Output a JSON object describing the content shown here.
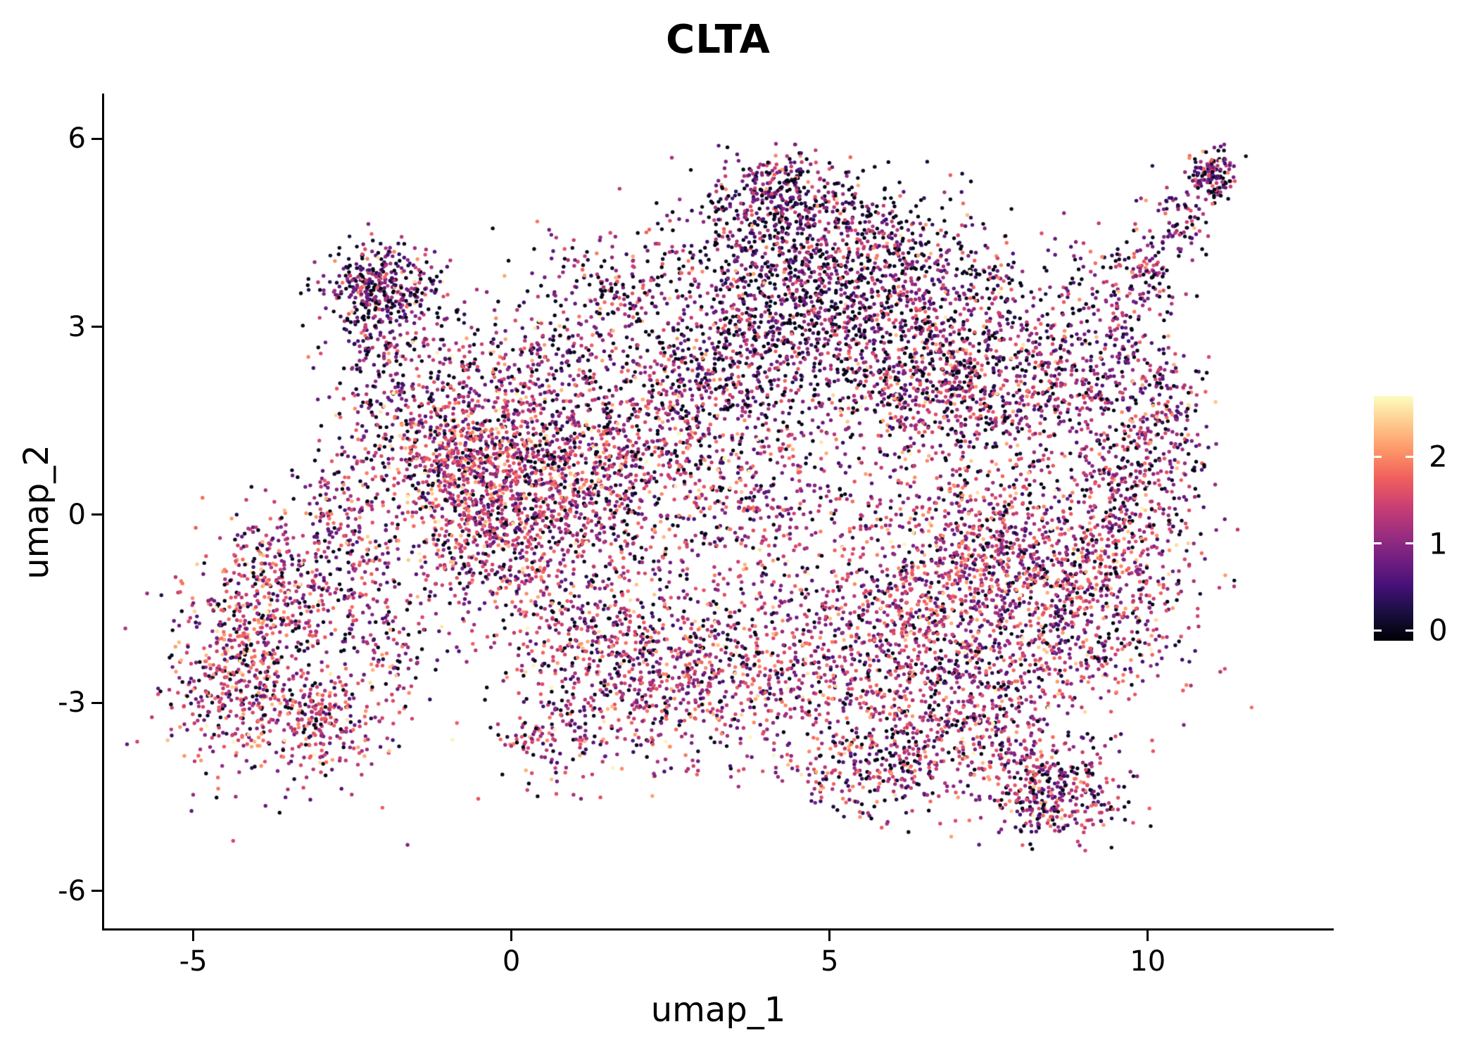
{
  "title": "CLTA",
  "axes": {
    "x": {
      "label": "umap_1",
      "ticks": [
        -5,
        0,
        5,
        10
      ],
      "range": [
        -6.4,
        12.9
      ]
    },
    "y": {
      "label": "umap_2",
      "ticks": [
        -6,
        -3,
        0,
        3,
        6
      ],
      "range": [
        -6.6,
        6.7
      ]
    }
  },
  "colorbar": {
    "ticks": [
      0,
      1,
      2
    ],
    "position": "right"
  },
  "chart_data": {
    "type": "scatter",
    "title": "CLTA",
    "xlabel": "umap_1",
    "ylabel": "umap_2",
    "xlim": [
      -6.4,
      12.9
    ],
    "ylim": [
      -6.6,
      6.7
    ],
    "grid": false,
    "legend": "vertical colorbar at right, expression values 0 to ~2.7, magma colormap (black to light yellow)",
    "point_radius_px": 2.7,
    "seed": 42,
    "value_sigma": 0.6,
    "color_scale": {
      "name": "magma",
      "domain": [
        -0.12,
        2.7
      ],
      "stops": [
        "#000004",
        "#180F3E",
        "#451077",
        "#721F81",
        "#9F2F7F",
        "#CD4071",
        "#F1605D",
        "#FD9668",
        "#FECA8D",
        "#FCFDBF"
      ]
    },
    "clusters": [
      {
        "x": -4.3,
        "y": -2.6,
        "sx": 0.55,
        "sy": 0.8,
        "n": 500,
        "mu": 1.35,
        "z": 0.15
      },
      {
        "x": -3.6,
        "y": -1.2,
        "sx": 0.5,
        "sy": 0.7,
        "n": 350,
        "mu": 1.3,
        "z": 0.15
      },
      {
        "x": -3.0,
        "y": -3.3,
        "sx": 0.5,
        "sy": 0.5,
        "n": 260,
        "mu": 1.4,
        "z": 0.12
      },
      {
        "x": -2.6,
        "y": -0.2,
        "sx": 0.35,
        "sy": 0.7,
        "n": 200,
        "mu": 1.2,
        "z": 0.18
      },
      {
        "x": -2.05,
        "y": 3.6,
        "sx": 0.45,
        "sy": 0.33,
        "n": 380,
        "mu": 0.95,
        "z": 0.2
      },
      {
        "x": -1.8,
        "y": 2.6,
        "sx": 0.6,
        "sy": 0.5,
        "n": 160,
        "mu": 1.0,
        "z": 0.25
      },
      {
        "x": -1.7,
        "y": 1.4,
        "sx": 0.5,
        "sy": 0.6,
        "n": 200,
        "mu": 1.1,
        "z": 0.2
      },
      {
        "x": -0.7,
        "y": 0.7,
        "sx": 0.55,
        "sy": 0.8,
        "n": 620,
        "mu": 1.35,
        "z": 0.12
      },
      {
        "x": 0.3,
        "y": 0.9,
        "sx": 0.8,
        "sy": 0.7,
        "n": 600,
        "mu": 1.3,
        "z": 0.13
      },
      {
        "x": 0.0,
        "y": -0.6,
        "sx": 0.8,
        "sy": 0.6,
        "n": 360,
        "mu": 1.25,
        "z": 0.15
      },
      {
        "x": 1.4,
        "y": 0.3,
        "sx": 0.7,
        "sy": 0.8,
        "n": 420,
        "mu": 1.2,
        "z": 0.15
      },
      {
        "x": 1.5,
        "y": -2.2,
        "sx": 0.9,
        "sy": 0.7,
        "n": 480,
        "mu": 1.25,
        "z": 0.15
      },
      {
        "x": 2.8,
        "y": -2.7,
        "sx": 0.8,
        "sy": 0.7,
        "n": 430,
        "mu": 1.25,
        "z": 0.15
      },
      {
        "x": 4.3,
        "y": 4.7,
        "sx": 0.8,
        "sy": 0.45,
        "n": 420,
        "mu": 0.95,
        "z": 0.28
      },
      {
        "x": 4.5,
        "y": 3.3,
        "sx": 1.0,
        "sy": 0.6,
        "n": 700,
        "mu": 0.9,
        "z": 0.3
      },
      {
        "x": 3.3,
        "y": 2.2,
        "sx": 0.8,
        "sy": 0.5,
        "n": 340,
        "mu": 1.05,
        "z": 0.22
      },
      {
        "x": 4.2,
        "y": 5.3,
        "sx": 0.35,
        "sy": 0.25,
        "n": 140,
        "mu": 1.0,
        "z": 0.25
      },
      {
        "x": 6.3,
        "y": 2.2,
        "sx": 1.0,
        "sy": 0.7,
        "n": 680,
        "mu": 1.1,
        "z": 0.2
      },
      {
        "x": 7.9,
        "y": 2.1,
        "sx": 0.9,
        "sy": 0.7,
        "n": 480,
        "mu": 1.1,
        "z": 0.2
      },
      {
        "x": 9.3,
        "y": 2.9,
        "sx": 0.6,
        "sy": 0.8,
        "n": 240,
        "mu": 1.05,
        "z": 0.22
      },
      {
        "x": 9.9,
        "y": 3.9,
        "sx": 0.25,
        "sy": 0.3,
        "n": 80,
        "mu": 1.0,
        "z": 0.2
      },
      {
        "x": 10.5,
        "y": 4.7,
        "sx": 0.2,
        "sy": 0.3,
        "n": 80,
        "mu": 1.0,
        "z": 0.2
      },
      {
        "x": 11.0,
        "y": 5.4,
        "sx": 0.18,
        "sy": 0.22,
        "n": 130,
        "mu": 1.0,
        "z": 0.25
      },
      {
        "x": 3.8,
        "y": 0.1,
        "sx": 0.9,
        "sy": 0.8,
        "n": 380,
        "mu": 1.2,
        "z": 0.15
      },
      {
        "x": 4.6,
        "y": -2.4,
        "sx": 0.8,
        "sy": 0.7,
        "n": 360,
        "mu": 1.25,
        "z": 0.15
      },
      {
        "x": 7.5,
        "y": -0.5,
        "sx": 1.2,
        "sy": 0.8,
        "n": 820,
        "mu": 1.3,
        "z": 0.12
      },
      {
        "x": 6.5,
        "y": -1.9,
        "sx": 0.9,
        "sy": 0.8,
        "n": 600,
        "mu": 1.3,
        "z": 0.12
      },
      {
        "x": 8.8,
        "y": -1.6,
        "sx": 0.9,
        "sy": 0.8,
        "n": 600,
        "mu": 1.25,
        "z": 0.14
      },
      {
        "x": 9.7,
        "y": 0.3,
        "sx": 0.55,
        "sy": 0.9,
        "n": 340,
        "mu": 1.15,
        "z": 0.18
      },
      {
        "x": 10.2,
        "y": 1.6,
        "sx": 0.4,
        "sy": 0.7,
        "n": 200,
        "mu": 1.1,
        "z": 0.2
      },
      {
        "x": 7.2,
        "y": -3.5,
        "sx": 1.0,
        "sy": 0.6,
        "n": 540,
        "mu": 1.25,
        "z": 0.15
      },
      {
        "x": 8.6,
        "y": -4.5,
        "sx": 0.5,
        "sy": 0.35,
        "n": 300,
        "mu": 1.15,
        "z": 0.18
      },
      {
        "x": 5.6,
        "y": -4.1,
        "sx": 0.6,
        "sy": 0.4,
        "n": 200,
        "mu": 1.2,
        "z": 0.16
      },
      {
        "x": 1.8,
        "y": 3.4,
        "sx": 1.0,
        "sy": 0.6,
        "n": 280,
        "mu": 1.1,
        "z": 0.22
      },
      {
        "x": 0.4,
        "y": 2.5,
        "sx": 0.7,
        "sy": 0.4,
        "n": 150,
        "mu": 1.15,
        "z": 0.2
      },
      {
        "x": 2.5,
        "y": 1.2,
        "sx": 0.8,
        "sy": 0.6,
        "n": 300,
        "mu": 1.2,
        "z": 0.15
      },
      {
        "x": -1.9,
        "y": -1.8,
        "sx": 0.4,
        "sy": 0.9,
        "n": 150,
        "mu": 1.2,
        "z": 0.2
      },
      {
        "x": 0.6,
        "y": -3.6,
        "sx": 0.5,
        "sy": 0.4,
        "n": 120,
        "mu": 1.2,
        "z": 0.18
      },
      {
        "x": 5.8,
        "y": 4.3,
        "sx": 0.7,
        "sy": 0.5,
        "n": 250,
        "mu": 1.0,
        "z": 0.25
      },
      {
        "x": 6.8,
        "y": 3.6,
        "sx": 0.7,
        "sy": 0.5,
        "n": 220,
        "mu": 1.05,
        "z": 0.22
      }
    ]
  }
}
